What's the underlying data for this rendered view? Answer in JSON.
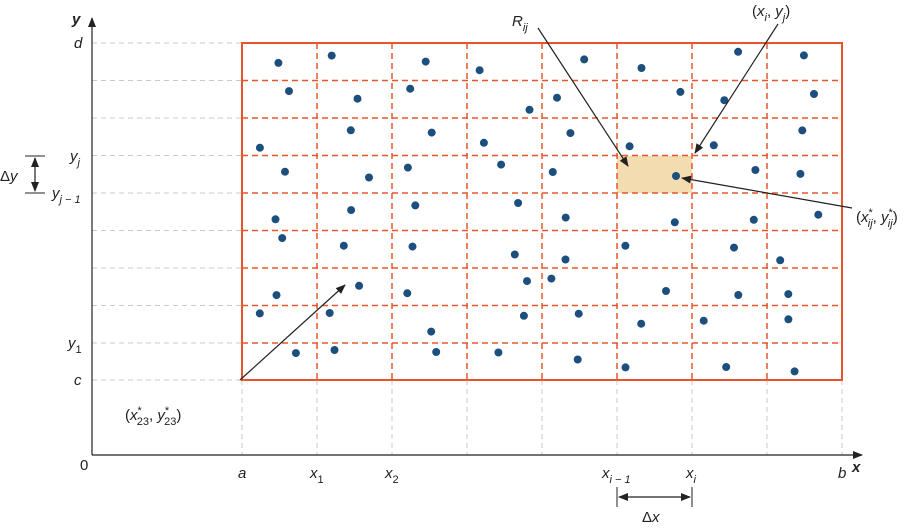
{
  "axis_labels": {
    "x": "x",
    "y": "y",
    "origin": "0"
  },
  "y_ticks": [
    [
      {
        "text": "d",
        "italic": true
      }
    ],
    [
      {
        "text": "y",
        "italic": true
      },
      {
        "text": "j",
        "italic": true,
        "pos": "sub"
      }
    ],
    [
      {
        "text": "y",
        "italic": true
      },
      {
        "text": "j − 1",
        "italic": true,
        "pos": "sub"
      }
    ],
    [
      {
        "text": "y",
        "italic": true
      },
      {
        "text": "1",
        "pos": "sub"
      }
    ],
    [
      {
        "text": "c",
        "italic": true
      }
    ]
  ],
  "x_ticks": [
    [
      {
        "text": "a",
        "italic": true
      }
    ],
    [
      {
        "text": "x",
        "italic": true
      },
      {
        "text": "1",
        "pos": "sub"
      }
    ],
    [
      {
        "text": "x",
        "italic": true
      },
      {
        "text": "2",
        "pos": "sub"
      }
    ],
    [
      {
        "text": "x",
        "italic": true
      },
      {
        "text": "i − 1",
        "italic": true,
        "pos": "sub"
      }
    ],
    [
      {
        "text": "x",
        "italic": true
      },
      {
        "text": "i",
        "italic": true,
        "pos": "sub"
      }
    ],
    [
      {
        "text": "b",
        "italic": true
      }
    ]
  ],
  "deltas": {
    "dy": [
      {
        "text": "Δ"
      },
      {
        "text": "y",
        "italic": true
      }
    ],
    "dx": [
      {
        "text": "Δ"
      },
      {
        "text": "x",
        "italic": true
      }
    ]
  },
  "callouts": {
    "region": [
      {
        "text": "R",
        "italic": true
      },
      {
        "text": "ij",
        "italic": true,
        "pos": "sub"
      }
    ],
    "corner": [
      {
        "text": "("
      },
      {
        "text": "x",
        "italic": true
      },
      {
        "text": "i",
        "italic": true,
        "pos": "sub"
      },
      {
        "text": ", "
      },
      {
        "text": "y",
        "italic": true
      },
      {
        "text": "j",
        "italic": true,
        "pos": "sub"
      },
      {
        "text": ")"
      }
    ],
    "sample": [
      {
        "text": "("
      },
      {
        "text": "x",
        "italic": true
      },
      {
        "text": "*",
        "pos": "sup"
      },
      {
        "text": "ij",
        "italic": true,
        "pos": "sub"
      },
      {
        "text": ", "
      },
      {
        "text": "y",
        "italic": true
      },
      {
        "text": "*",
        "pos": "sup"
      },
      {
        "text": "ij",
        "italic": true,
        "pos": "sub"
      },
      {
        "text": ")"
      }
    ],
    "sample_23": [
      {
        "text": "("
      },
      {
        "text": "x",
        "italic": true
      },
      {
        "text": "*",
        "pos": "sup"
      },
      {
        "text": "23",
        "pos": "sub"
      },
      {
        "text": ", "
      },
      {
        "text": "y",
        "italic": true
      },
      {
        "text": "*",
        "pos": "sup"
      },
      {
        "text": "23",
        "pos": "sub"
      },
      {
        "text": ")"
      }
    ]
  }
}
